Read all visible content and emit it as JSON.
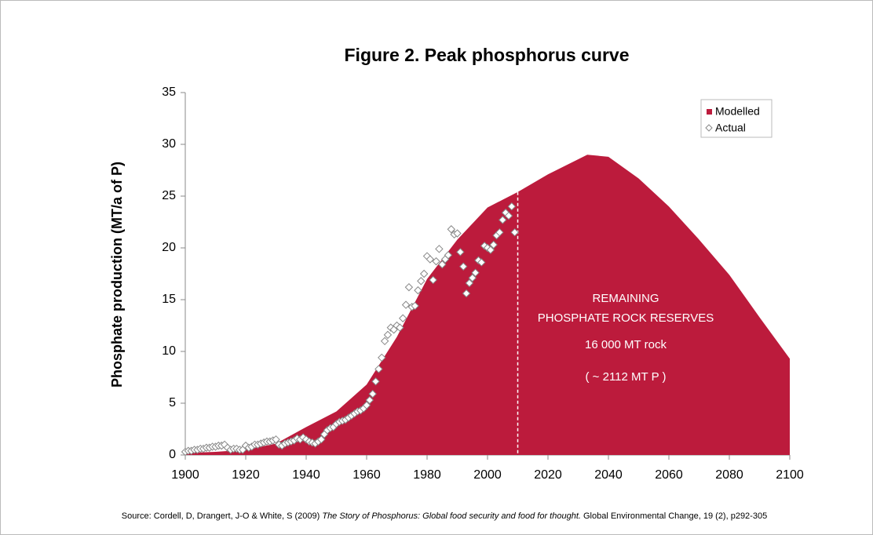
{
  "chart_data": {
    "type": "area-scatter",
    "title": "Figure 2. Peak phosphorus curve",
    "y_label": "Phosphate production (MT/a of P)",
    "xlim": [
      1900,
      2100
    ],
    "xticks": [
      1900,
      1920,
      1940,
      1960,
      1980,
      2000,
      2020,
      2040,
      2060,
      2080,
      2100
    ],
    "ylim": [
      0,
      35
    ],
    "yticks": [
      0,
      5,
      10,
      15,
      20,
      25,
      30,
      35
    ],
    "legend": "top-right",
    "dashed_line_x": 2010,
    "series": [
      {
        "name": "Modelled",
        "color": "#bc1b3c",
        "x": [
          1900,
          1910,
          1920,
          1930,
          1940,
          1950,
          1960,
          1970,
          1980,
          1990,
          2000,
          2010,
          2020,
          2033,
          2040,
          2050,
          2060,
          2070,
          2080,
          2090,
          2100
        ],
        "values": [
          0.2,
          0.3,
          0.5,
          1.1,
          2.7,
          4.2,
          6.8,
          11.4,
          17,
          20.8,
          23.9,
          25.4,
          27.1,
          29,
          28.8,
          26.7,
          24,
          20.8,
          17.4,
          13.3,
          9.3
        ]
      },
      {
        "name": "Actual",
        "color": "#888888",
        "x": [
          1900,
          1901,
          1902,
          1903,
          1904,
          1905,
          1906,
          1907,
          1908,
          1909,
          1910,
          1911,
          1912,
          1913,
          1914,
          1915,
          1916,
          1917,
          1918,
          1919,
          1920,
          1921,
          1922,
          1923,
          1924,
          1925,
          1926,
          1927,
          1928,
          1929,
          1930,
          1931,
          1932,
          1933,
          1934,
          1935,
          1936,
          1937,
          1938,
          1939,
          1940,
          1941,
          1942,
          1943,
          1944,
          1945,
          1946,
          1947,
          1948,
          1949,
          1950,
          1951,
          1952,
          1953,
          1954,
          1955,
          1956,
          1957,
          1958,
          1959,
          1960,
          1961,
          1962,
          1963,
          1964,
          1965,
          1966,
          1967,
          1968,
          1969,
          1970,
          1971,
          1972,
          1973,
          1974,
          1975,
          1976,
          1977,
          1978,
          1979,
          1980,
          1981,
          1982,
          1983,
          1984,
          1985,
          1986,
          1987,
          1988,
          1989,
          1990,
          1991,
          1992,
          1993,
          1994,
          1995,
          1996,
          1997,
          1998,
          1999,
          2000,
          2001,
          2002,
          2003,
          2004,
          2005,
          2006,
          2007,
          2008,
          2009
        ],
        "values": [
          0.3,
          0.4,
          0.4,
          0.5,
          0.5,
          0.6,
          0.6,
          0.7,
          0.7,
          0.8,
          0.8,
          0.9,
          0.9,
          1.0,
          0.7,
          0.5,
          0.6,
          0.6,
          0.5,
          0.5,
          0.9,
          0.7,
          0.8,
          1.0,
          1.0,
          1.1,
          1.2,
          1.3,
          1.3,
          1.4,
          1.5,
          1.0,
          0.9,
          1.1,
          1.2,
          1.3,
          1.4,
          1.6,
          1.5,
          1.7,
          1.5,
          1.3,
          1.2,
          1.1,
          1.3,
          1.5,
          2.0,
          2.4,
          2.6,
          2.7,
          3.0,
          3.2,
          3.3,
          3.4,
          3.6,
          3.8,
          4.0,
          4.2,
          4.3,
          4.5,
          4.8,
          5.3,
          5.9,
          7.1,
          8.3,
          9.4,
          11.0,
          11.6,
          12.3,
          12.1,
          12.5,
          12.3,
          13.2,
          14.5,
          16.2,
          14.3,
          14.4,
          15.9,
          16.8,
          17.5,
          19.2,
          18.9,
          16.9,
          18.7,
          19.9,
          18.4,
          18.9,
          19.3,
          21.8,
          21.3,
          21.4,
          19.6,
          18.2,
          15.6,
          16.6,
          17.1,
          17.6,
          18.8,
          18.6,
          20.2,
          20.0,
          19.8,
          20.3,
          21.2,
          21.5,
          22.7,
          23.4,
          23.1,
          24.0,
          21.5
        ]
      }
    ],
    "annotations": [
      "REMAINING",
      "PHOSPHATE ROCK RESERVES",
      "16 000 MT rock",
      "( ~ 2112 MT P )"
    ],
    "source": {
      "before": "Source: Cordell, D, Drangert, J-O & White, S (2009) ",
      "italic": "The Story of Phosphorus: Global food security and food for thought.",
      "after": " Global Environmental Change, 19 (2), p292-305"
    }
  }
}
